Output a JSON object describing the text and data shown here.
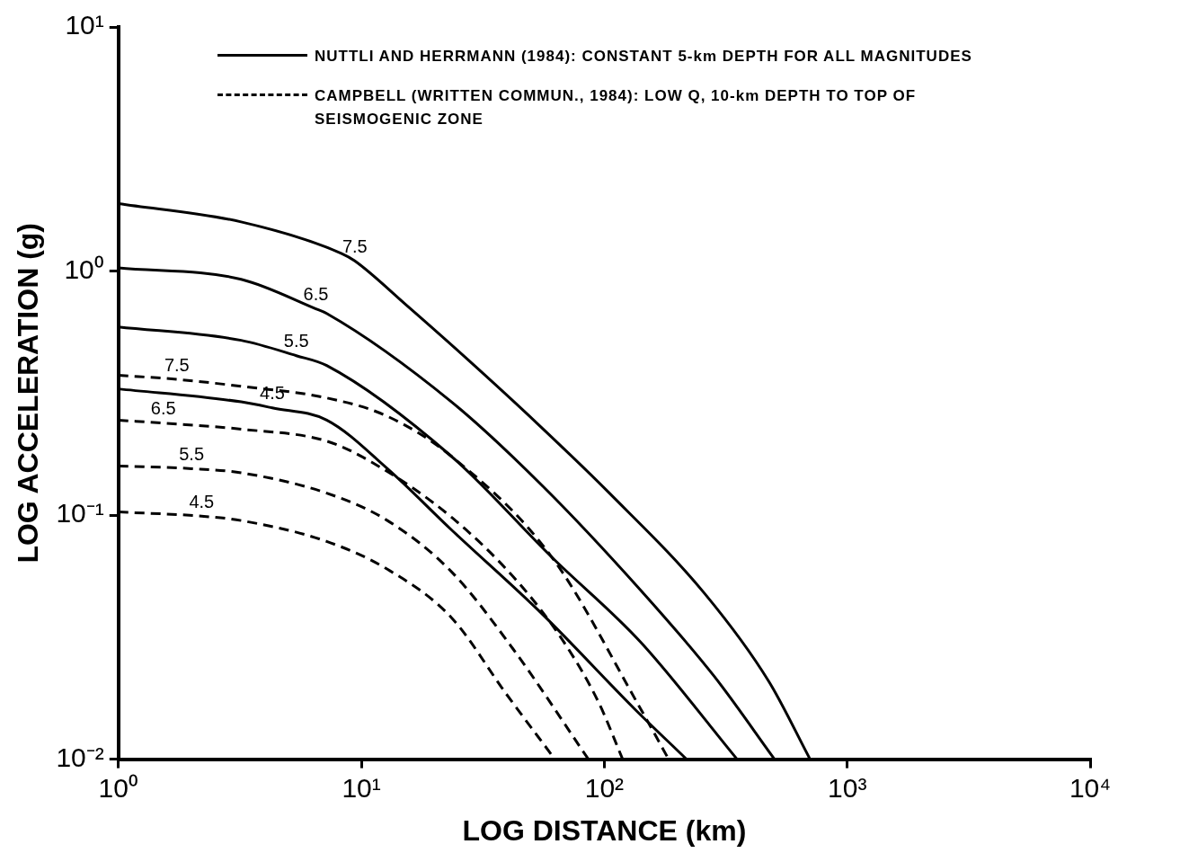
{
  "chart_data": {
    "type": "line",
    "xlabel": "LOG DISTANCE (km)",
    "ylabel": "LOG ACCELERATION (g)",
    "log": "xy",
    "marker": "none",
    "xlim": [
      1,
      10000
    ],
    "ylim": [
      0.01,
      10
    ],
    "xticks": [
      {
        "value": 1,
        "label": "10⁰"
      },
      {
        "value": 10,
        "label": "10¹"
      },
      {
        "value": 100,
        "label": "10²"
      },
      {
        "value": 1000,
        "label": "10³"
      },
      {
        "value": 10000,
        "label": "10⁴"
      }
    ],
    "yticks": [
      {
        "value": 0.01,
        "label": "10⁻²"
      },
      {
        "value": 0.1,
        "label": "10⁻¹"
      },
      {
        "value": 1,
        "label": "10⁰"
      },
      {
        "value": 10,
        "label": "10¹"
      }
    ],
    "series": [
      {
        "color": "#000000",
        "line_style": "solid",
        "x": [
          1,
          3.2,
          8.3,
          9.4,
          15.2,
          27.2,
          52.6,
          105,
          259,
          476,
          703
        ],
        "values": [
          1.89,
          1.59,
          1.18,
          1.1,
          0.73,
          0.437,
          0.239,
          0.123,
          0.0477,
          0.0208,
          0.01
        ]
      },
      {
        "color": "#000000",
        "line_style": "solid",
        "x": [
          1,
          3.2,
          6.5,
          7.2,
          23.5,
          56,
          141,
          283,
          502
        ],
        "values": [
          1.03,
          0.925,
          0.7,
          0.67,
          0.291,
          0.131,
          0.0493,
          0.0219,
          0.01
        ]
      },
      {
        "color": "#000000",
        "line_style": "solid",
        "x": [
          1,
          3.2,
          5.4,
          7.2,
          23.5,
          61,
          141,
          352
        ],
        "values": [
          0.59,
          0.52,
          0.45,
          0.41,
          0.174,
          0.067,
          0.0302,
          0.01
        ]
      },
      {
        "color": "#000000",
        "line_style": "solid",
        "x": [
          1,
          3.2,
          4.3,
          7.2,
          12.8,
          23.5,
          56,
          133,
          218
        ],
        "values": [
          0.329,
          0.291,
          0.275,
          0.245,
          0.155,
          0.087,
          0.039,
          0.0161,
          0.01
        ]
      },
      {
        "color": "#000000",
        "line_style": "dashed",
        "x": [
          1,
          1.74,
          3.2,
          7.2,
          12.8,
          23.5,
          61,
          141,
          184
        ],
        "values": [
          0.374,
          0.36,
          0.337,
          0.302,
          0.254,
          0.174,
          0.067,
          0.0161,
          0.01
        ]
      },
      {
        "color": "#000000",
        "line_style": "dashed",
        "x": [
          1,
          1.53,
          3.2,
          7.2,
          11,
          23.5,
          45,
          70,
          95,
          119
        ],
        "values": [
          0.245,
          0.238,
          0.225,
          0.201,
          0.165,
          0.098,
          0.052,
          0.029,
          0.017,
          0.01
        ]
      },
      {
        "color": "#000000",
        "line_style": "dashed",
        "x": [
          1,
          2,
          3.2,
          7.2,
          12.8,
          23.5,
          42,
          86
        ],
        "values": [
          0.159,
          0.155,
          0.149,
          0.123,
          0.095,
          0.0586,
          0.0284,
          0.01
        ]
      },
      {
        "color": "#000000",
        "line_style": "dashed",
        "x": [
          1,
          2.2,
          3.2,
          7.2,
          12.8,
          23.5,
          39.5,
          62.6
        ],
        "values": [
          0.103,
          0.099,
          0.095,
          0.078,
          0.06,
          0.038,
          0.0185,
          0.01
        ]
      }
    ],
    "annotations": [
      "NUTTLI AND HERRMANN (1984): CONSTANT 5-km DEPTH FOR ALL MAGNITUDES",
      "CAMPBELL (WRITTEN COMMUN., 1984): LOW Q, 10-km DEPTH TO TOP OF SEISMOGENIC ZONE",
      {
        "text": "7.5",
        "x": 9.4,
        "y": 1.1
      },
      {
        "text": "6.5",
        "x": 6.5,
        "y": 0.7
      },
      {
        "text": "5.5",
        "x": 5.4,
        "y": 0.45
      },
      {
        "text": "4.5",
        "x": 4.3,
        "y": 0.275
      },
      {
        "text": "7.5",
        "x": 1.74,
        "y": 0.36
      },
      {
        "text": "6.5",
        "x": 1.53,
        "y": 0.238
      },
      {
        "text": "5.5",
        "x": 2,
        "y": 0.155
      },
      {
        "text": "4.5",
        "x": 2.2,
        "y": 0.099
      }
    ]
  }
}
